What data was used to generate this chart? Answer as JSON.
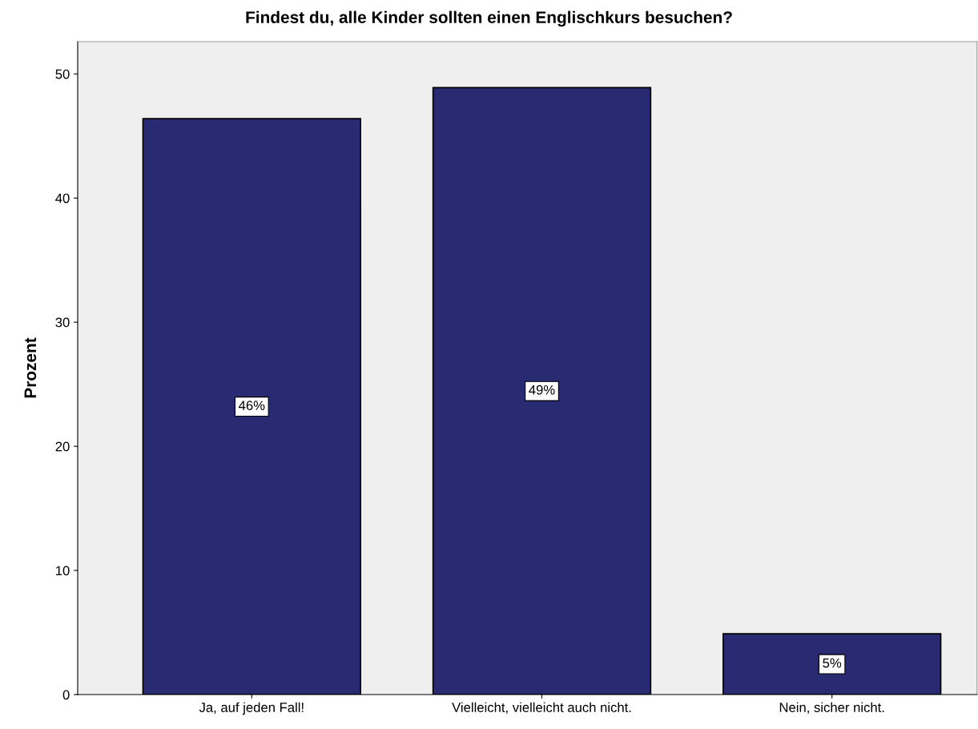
{
  "chart_data": {
    "type": "bar",
    "title": "Findest du, alle Kinder sollten einen Englischkurs besuchen?",
    "ylabel": "Prozent",
    "categories": [
      "Ja, auf jeden Fall!",
      "Vielleicht, vielleicht auch nicht.",
      "Nein, sicher nicht."
    ],
    "values": [
      46.4,
      48.9,
      4.9
    ],
    "value_labels": [
      "46%",
      "49%",
      "5%"
    ],
    "color": "#282a72",
    "ylim": [
      0,
      52.6
    ],
    "yticks": [
      0,
      10,
      20,
      30,
      40,
      50
    ],
    "grid": false,
    "legend": false
  }
}
